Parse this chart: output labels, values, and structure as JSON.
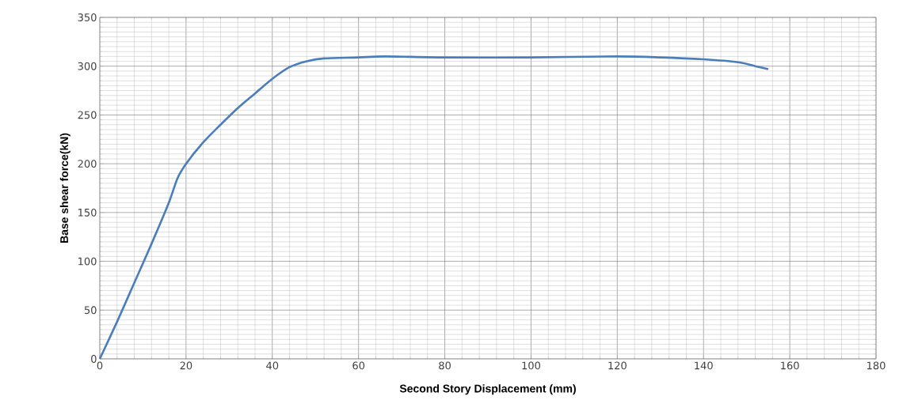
{
  "chart_data": {
    "type": "line",
    "xlabel": "Second Story Displacement  (mm)",
    "ylabel": "Base shear force(kN)",
    "xlim": [
      0,
      180
    ],
    "xticks": [
      0,
      20,
      40,
      60,
      80,
      100,
      120,
      140,
      160,
      180
    ],
    "ylim": [
      0,
      350
    ],
    "yticks": [
      0,
      50,
      100,
      150,
      200,
      250,
      300,
      350
    ],
    "grid": true,
    "marker": "none",
    "line_style": "solid",
    "series": [
      {
        "color": "#4a7ebb",
        "x": [
          0,
          4,
          8,
          12,
          16,
          18,
          20,
          24,
          28,
          32,
          36,
          40,
          44,
          48,
          52,
          60,
          66,
          80,
          100,
          120,
          130,
          140,
          148,
          152,
          155
        ],
        "values": [
          0,
          38,
          78,
          118,
          160,
          185,
          200,
          222,
          240,
          257,
          272,
          287,
          299,
          305,
          308,
          309,
          310,
          309,
          309,
          310,
          309,
          307,
          304,
          300,
          297
        ]
      }
    ]
  }
}
